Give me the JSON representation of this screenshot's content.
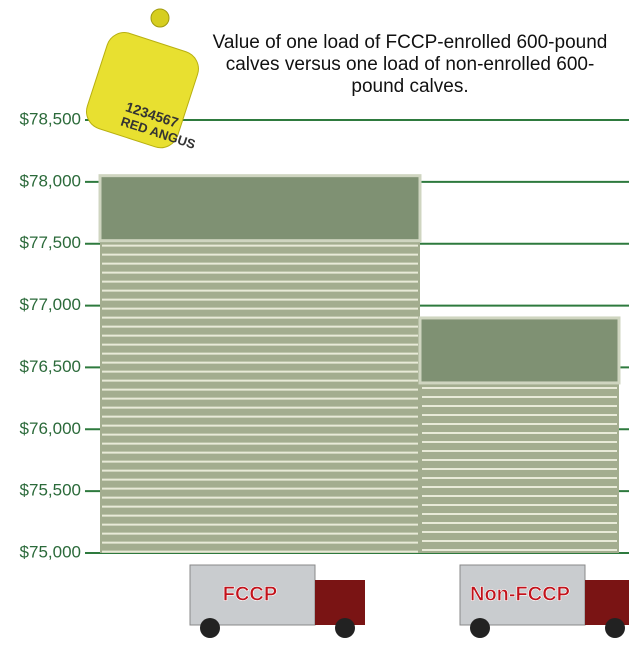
{
  "chart_data": {
    "type": "bar",
    "subtitle": "Value of one load of FCCP-enrolled 600-pound calves versus one load of non-enrolled 600-pound calves.",
    "annotations": [
      "1234567",
      "RED ANGUS"
    ],
    "categories": [
      "FCCP",
      "Non-FCCP"
    ],
    "values": [
      78050,
      76900
    ],
    "color": "#a3ad8f",
    "ylim": [
      75000,
      78500
    ],
    "yticks": [
      {
        "value": 75000,
        "label": "$75,000"
      },
      {
        "value": 75500,
        "label": "$75,500"
      },
      {
        "value": 76000,
        "label": "$76,000"
      },
      {
        "value": 76500,
        "label": "$76,500"
      },
      {
        "value": 77000,
        "label": "$77,000"
      },
      {
        "value": 77500,
        "label": "$77,500"
      },
      {
        "value": 78000,
        "label": "$78,000"
      },
      {
        "value": 78500,
        "label": "$78,500"
      }
    ],
    "grid": true,
    "grid_color": "#2e7a3e"
  }
}
